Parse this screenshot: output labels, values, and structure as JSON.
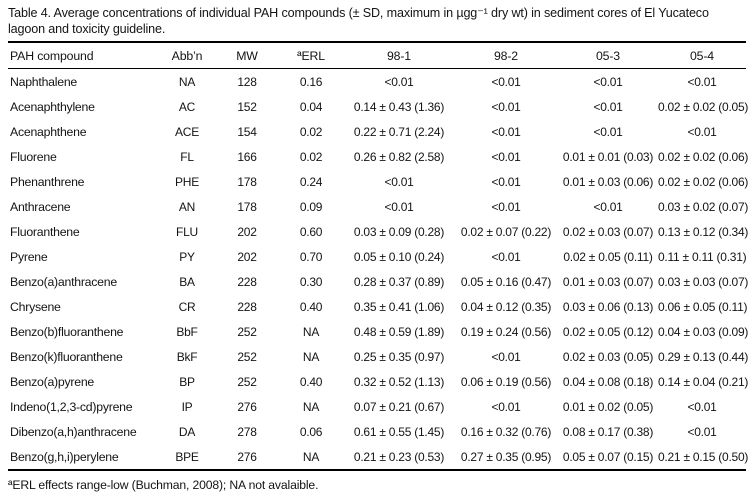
{
  "table": {
    "title": "Table 4. Average concentrations of individual PAH compounds (± SD, maximum in µgg⁻¹ dry wt) in sediment cores of El Yucateco lagoon and toxicity guideline.",
    "columns": [
      "PAH compound",
      "Abb’n",
      "MW",
      "ªERL",
      "98-1",
      "98-2",
      "05-3",
      "05-4"
    ],
    "rows": [
      [
        "Naphthalene",
        "NA",
        "128",
        "0.16",
        "<0.01",
        "<0.01",
        "<0.01",
        "<0.01"
      ],
      [
        "Acenaphthylene",
        "AC",
        "152",
        "0.04",
        "0.14 ± 0.43 (1.36)",
        "<0.01",
        "<0.01",
        "0.02 ± 0.02 (0.05)"
      ],
      [
        "Acenaphthene",
        "ACE",
        "154",
        "0.02",
        "0.22 ± 0.71 (2.24)",
        "<0.01",
        "<0.01",
        "<0.01"
      ],
      [
        "Fluorene",
        "FL",
        "166",
        "0.02",
        "0.26 ± 0.82 (2.58)",
        "<0.01",
        "0.01 ± 0.01 (0.03)",
        "0.02 ± 0.02 (0.06)"
      ],
      [
        "Phenanthrene",
        "PHE",
        "178",
        "0.24",
        "<0.01",
        "<0.01",
        "0.01 ± 0.03 (0.06)",
        "0.02 ± 0.02 (0.06)"
      ],
      [
        "Anthracene",
        "AN",
        "178",
        "0.09",
        "<0.01",
        "<0.01",
        "<0.01",
        "0.03 ± 0.02 (0.07)"
      ],
      [
        "Fluoranthene",
        "FLU",
        "202",
        "0.60",
        "0.03 ± 0.09 (0.28)",
        "0.02 ± 0.07 (0.22)",
        "0.02 ± 0.03 (0.07)",
        "0.13 ± 0.12 (0.34)"
      ],
      [
        "Pyrene",
        "PY",
        "202",
        "0.70",
        "0.05 ± 0.10 (0.24)",
        "<0.01",
        "0.02 ± 0.05 (0.11)",
        "0.11 ± 0.11 (0.31)"
      ],
      [
        "Benzo(a)anthracene",
        "BA",
        "228",
        "0.30",
        "0.28 ± 0.37 (0.89)",
        "0.05 ± 0.16 (0.47)",
        "0.01 ± 0.03 (0.07)",
        "0.03 ± 0.03 (0.07)"
      ],
      [
        "Chrysene",
        "CR",
        "228",
        "0.40",
        "0.35 ± 0.41 (1.06)",
        "0.04 ± 0.12 (0.35)",
        "0.03 ± 0.06 (0.13)",
        "0.06 ± 0.05 (0.11)"
      ],
      [
        "Benzo(b)fluoranthene",
        "BbF",
        "252",
        "NA",
        "0.48 ± 0.59 (1.89)",
        "0.19 ± 0.24 (0.56)",
        "0.02 ± 0.05 (0.12)",
        "0.04 ± 0.03 (0.09)"
      ],
      [
        "Benzo(k)fluoranthene",
        "BkF",
        "252",
        "NA",
        "0.25 ± 0.35 (0.97)",
        "<0.01",
        "0.02 ± 0.03 (0.05)",
        "0.29 ± 0.13 (0.44)"
      ],
      [
        "Benzo(a)pyrene",
        "BP",
        "252",
        "0.40",
        "0.32 ± 0.52 (1.13)",
        "0.06 ± 0.19 (0.56)",
        "0.04 ± 0.08 (0.18)",
        "0.14 ± 0.04 (0.21)"
      ],
      [
        "Indeno(1,2,3-cd)pyrene",
        "IP",
        "276",
        "NA",
        "0.07 ± 0.21 (0.67)",
        "<0.01",
        "0.01 ± 0.02 (0.05)",
        "<0.01"
      ],
      [
        "Dibenzo(a,h)anthracene",
        "DA",
        "278",
        "0.06",
        "0.61 ± 0.55 (1.45)",
        "0.16 ± 0.32 (0.76)",
        "0.08 ± 0.17 (0.38)",
        "<0.01"
      ],
      [
        "Benzo(g,h,i)perylene",
        "BPE",
        "276",
        "NA",
        "0.21 ± 0.23 (0.53)",
        "0.27 ± 0.35 (0.95)",
        "0.05 ± 0.07 (0.15)",
        "0.21 ± 0.15 (0.50)"
      ]
    ],
    "footnote": "ªERL effects range-low (Buchman, 2008); NA not avalaible."
  }
}
